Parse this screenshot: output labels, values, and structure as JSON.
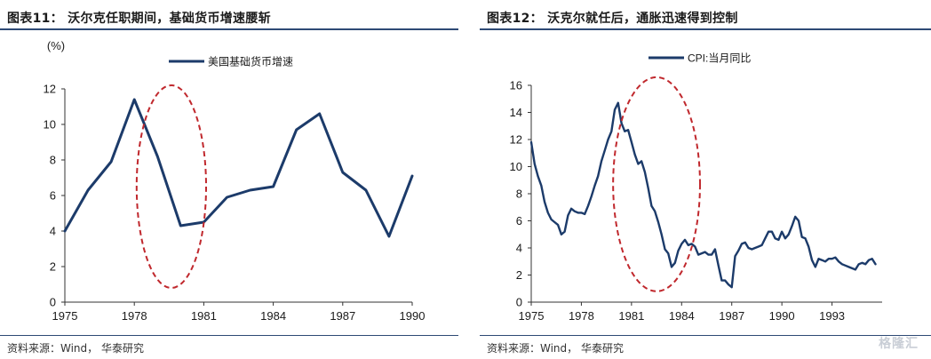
{
  "figures": [
    {
      "title": "图表11：  沃尔克任职期间，基础货币增速腰斩",
      "source": "资料来源：Wind， 华泰研究",
      "chart_data": {
        "type": "line",
        "unit_label": "(%)",
        "ylim": [
          0,
          12
        ],
        "yticks": [
          0,
          2,
          4,
          6,
          8,
          10,
          12
        ],
        "xlim": [
          1975,
          1990
        ],
        "xticks": [
          1975,
          1978,
          1981,
          1984,
          1987,
          1990
        ],
        "series": [
          {
            "name": "美国基础货币增速",
            "color": "#1c3b6a",
            "x": [
              1975,
              1976,
              1977,
              1978,
              1979,
              1980,
              1981,
              1982,
              1983,
              1984,
              1985,
              1986,
              1987,
              1988,
              1989,
              1990
            ],
            "y": [
              4.0,
              6.3,
              7.9,
              11.4,
              8.2,
              4.3,
              4.5,
              5.9,
              6.3,
              6.5,
              9.7,
              10.6,
              7.3,
              6.3,
              3.7,
              7.1
            ]
          }
        ],
        "annotation": {
          "shape": "dashed-ellipse",
          "color": "#c0282d",
          "cx": 1979.6,
          "cy": 6.5,
          "rx": 1.5,
          "ry": 5.7
        },
        "legend_position": "top-center",
        "grid": false
      }
    },
    {
      "title": "图表12：  沃克尔就任后，通胀迅速得到控制",
      "source": "资料来源：Wind， 华泰研究",
      "chart_data": {
        "type": "line",
        "ylim": [
          0,
          16
        ],
        "yticks": [
          0,
          2,
          4,
          6,
          8,
          10,
          12,
          14,
          16
        ],
        "xlim": [
          1975,
          1996
        ],
        "xticks": [
          1975,
          1978,
          1981,
          1984,
          1987,
          1990,
          1993
        ],
        "series": [
          {
            "name": "CPI:当月同比",
            "color": "#1c3b6a",
            "x": [
              1975.0,
              1975.2,
              1975.4,
              1975.6,
              1975.8,
              1976.0,
              1976.2,
              1976.4,
              1976.6,
              1976.8,
              1977.0,
              1977.2,
              1977.4,
              1977.6,
              1977.8,
              1978.0,
              1978.2,
              1978.4,
              1978.6,
              1978.8,
              1979.0,
              1979.2,
              1979.4,
              1979.6,
              1979.8,
              1980.0,
              1980.2,
              1980.4,
              1980.6,
              1980.8,
              1981.0,
              1981.2,
              1981.4,
              1981.6,
              1981.8,
              1982.0,
              1982.2,
              1982.4,
              1982.6,
              1982.8,
              1983.0,
              1983.2,
              1983.4,
              1983.6,
              1983.8,
              1984.0,
              1984.2,
              1984.4,
              1984.6,
              1984.8,
              1985.0,
              1985.2,
              1985.4,
              1985.6,
              1985.8,
              1986.0,
              1986.2,
              1986.4,
              1986.6,
              1986.8,
              1987.0,
              1987.2,
              1987.4,
              1987.6,
              1987.8,
              1988.0,
              1988.2,
              1988.4,
              1988.6,
              1988.8,
              1989.0,
              1989.2,
              1989.4,
              1989.6,
              1989.8,
              1990.0,
              1990.2,
              1990.4,
              1990.6,
              1990.8,
              1991.0,
              1991.2,
              1991.4,
              1991.6,
              1991.8,
              1992.0,
              1992.2,
              1992.4,
              1992.6,
              1992.8,
              1993.0,
              1993.2,
              1993.4,
              1993.6,
              1993.8,
              1994.0,
              1994.2,
              1994.4,
              1994.6,
              1994.8,
              1995.0,
              1995.2,
              1995.4,
              1995.6
            ],
            "y": [
              11.8,
              10.2,
              9.3,
              8.6,
              7.4,
              6.6,
              6.1,
              5.9,
              5.7,
              5.0,
              5.2,
              6.4,
              6.9,
              6.7,
              6.6,
              6.6,
              6.5,
              7.1,
              7.8,
              8.6,
              9.3,
              10.4,
              11.2,
              12.0,
              12.6,
              14.2,
              14.7,
              13.2,
              12.6,
              12.7,
              11.8,
              10.9,
              10.2,
              10.4,
              9.6,
              8.4,
              7.1,
              6.7,
              5.9,
              5.0,
              3.9,
              3.6,
              2.6,
              2.9,
              3.8,
              4.3,
              4.6,
              4.2,
              4.3,
              4.1,
              3.5,
              3.6,
              3.7,
              3.5,
              3.5,
              3.9,
              2.7,
              1.6,
              1.6,
              1.3,
              1.1,
              3.4,
              3.8,
              4.3,
              4.4,
              4.0,
              3.9,
              4.0,
              4.1,
              4.2,
              4.7,
              5.2,
              5.2,
              4.7,
              4.6,
              5.2,
              4.7,
              5.0,
              5.6,
              6.3,
              6.0,
              4.8,
              4.7,
              4.1,
              3.1,
              2.6,
              3.2,
              3.1,
              3.0,
              3.2,
              3.2,
              3.3,
              3.0,
              2.8,
              2.7,
              2.6,
              2.5,
              2.4,
              2.8,
              2.9,
              2.8,
              3.1,
              3.2,
              2.8
            ]
          }
        ],
        "annotation": {
          "shape": "dashed-ellipse",
          "color": "#c0282d",
          "cx": 1982.5,
          "cy": 8.7,
          "rx": 2.6,
          "ry": 7.9
        },
        "legend_position": "top-center",
        "grid": false
      }
    }
  ],
  "watermark": "格隆汇"
}
